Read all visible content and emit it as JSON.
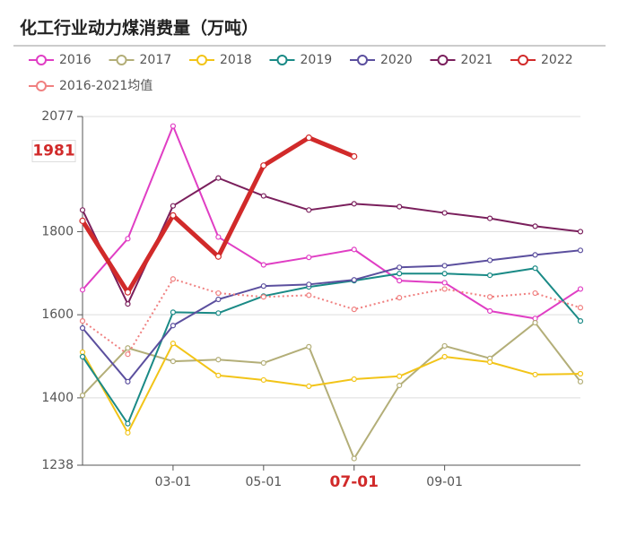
{
  "chart_data": {
    "type": "line",
    "title": "化工行业动力煤消费量（万吨）",
    "categories": [
      null,
      null,
      "03-01",
      null,
      "05-01",
      null,
      "07-01",
      null,
      "09-01",
      null,
      null,
      null
    ],
    "ylim": [
      1238,
      2077
    ],
    "yticks": [
      1238,
      1400,
      1600,
      1800,
      2077
    ],
    "grid": true,
    "series": [
      {
        "name": "2016",
        "color": "#e03ec4",
        "values": [
          1660,
          1783,
          2054,
          1787,
          1720,
          1738,
          1757,
          1682,
          1677,
          1609,
          1591,
          1662
        ]
      },
      {
        "name": "2017",
        "color": "#b3ae78",
        "values": [
          1406,
          1520,
          1488,
          1492,
          1484,
          1523,
          1254,
          1430,
          1525,
          1495,
          1581,
          1439
        ]
      },
      {
        "name": "2018",
        "color": "#f2c418",
        "values": [
          1510,
          1316,
          1531,
          1454,
          1443,
          1428,
          1445,
          1452,
          1499,
          1486,
          1456,
          1458
        ]
      },
      {
        "name": "2019",
        "color": "#1a8a86",
        "values": [
          1499,
          1338,
          1606,
          1604,
          1645,
          1667,
          1682,
          1699,
          1699,
          1695,
          1712,
          1585
        ]
      },
      {
        "name": "2020",
        "color": "#5b4f9e",
        "values": [
          1568,
          1439,
          1574,
          1637,
          1669,
          1673,
          1684,
          1714,
          1718,
          1731,
          1744,
          1755
        ]
      },
      {
        "name": "2021",
        "color": "#7a1f5c",
        "values": [
          1852,
          1626,
          1862,
          1929,
          1886,
          1852,
          1867,
          1860,
          1845,
          1832,
          1813,
          1800
        ]
      },
      {
        "name": "2022",
        "color": "#d12a2a",
        "values": [
          1826,
          1654,
          1839,
          1740,
          1959,
          2026,
          1981,
          null,
          null,
          null,
          null,
          null
        ],
        "highlight": true
      },
      {
        "name": "2016-2021均值",
        "color": "#f08080",
        "dashed": true,
        "values": [
          1585,
          1505,
          1686,
          1652,
          1643,
          1647,
          1613,
          1641,
          1662,
          1643,
          1652,
          1617
        ]
      }
    ]
  }
}
